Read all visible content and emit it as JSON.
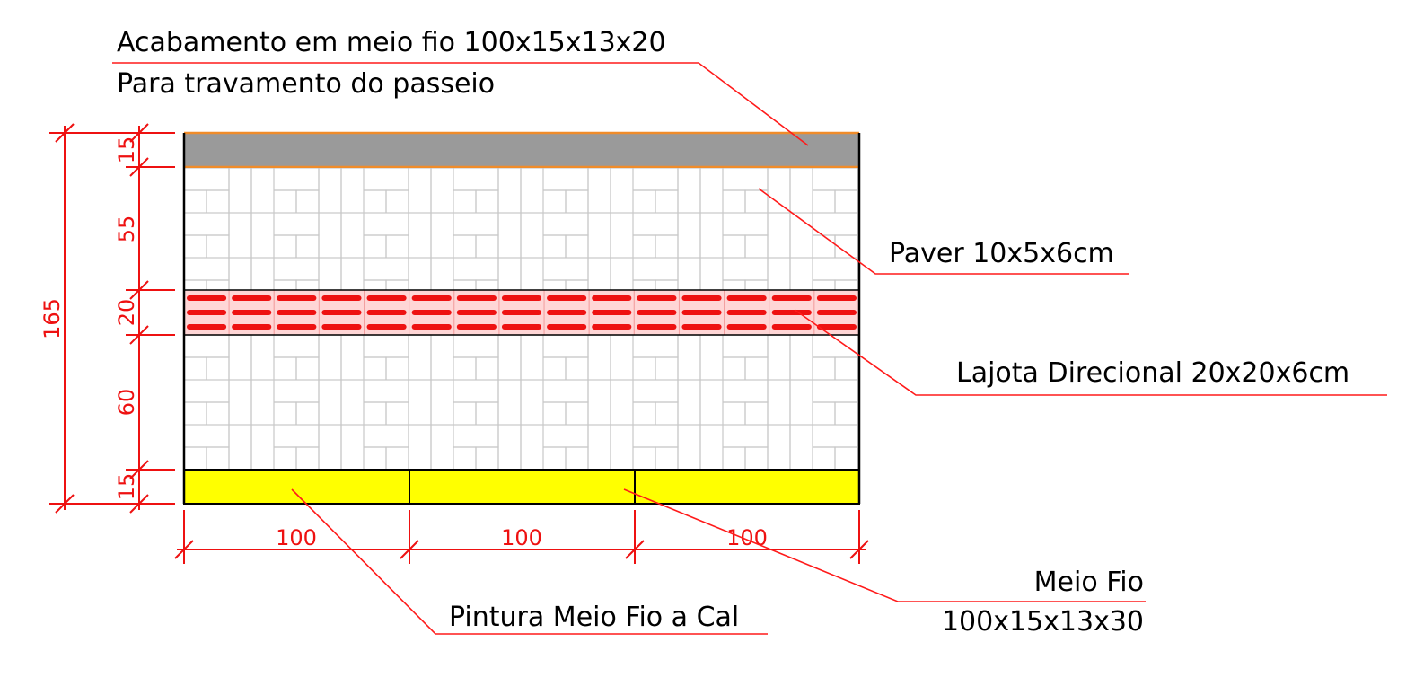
{
  "colors": {
    "leader": "#ff1a1a",
    "dimension": "#ee1111",
    "curb_top": "#9a9a9a",
    "curb_top_edge": "#f08c2a",
    "curb_bottom": "#ffff00",
    "tactile_dash": "#ee1111",
    "tactile_band": "#ffd6d6",
    "paver_joint": "#c8c8c8"
  },
  "labels": {
    "curb_top_line1": "Acabamento em meio fio 100x15x13x20",
    "curb_top_line2": "Para travamento do passeio",
    "paver": "Paver 10x5x6cm",
    "tactile": "Lajota Direcional 20x20x6cm",
    "curb_bottom_line1": "Meio Fio",
    "curb_bottom_line2": "100x15x13x30",
    "painting": "Pintura Meio Fio a Cal"
  },
  "dimensions": {
    "total": "165",
    "segments": [
      "15",
      "55",
      "20",
      "60",
      "15"
    ],
    "widths": [
      "100",
      "100",
      "100"
    ]
  }
}
